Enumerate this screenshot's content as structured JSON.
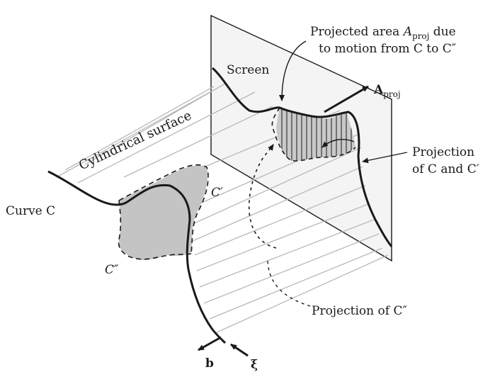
{
  "labels": {
    "screen": "Screen",
    "cylindrical_surface": "Cylindrical surface",
    "curve_c": "Curve C",
    "c_prime": "C′",
    "c_double_prime": "C″",
    "projected_area_line1_pre": "Projected area ",
    "projected_area_symbol": "A",
    "projected_area_subscript": "proj",
    "projected_area_line1_post": " due",
    "projected_area_line2": "to motion from C to C″",
    "a_proj_vector": "A",
    "a_proj_vector_subscript": "proj",
    "projection_c_line1": "Projection",
    "projection_c_line2": "of C and C′",
    "projection_c_double_prime": "Projection of C″",
    "b_vector": "b",
    "xi_vector": "ξ"
  },
  "colors": {
    "line": "#1a1a1a",
    "hatch": "#b8b8b8",
    "shaded_region": "#c4c4c4",
    "screen_fill": "#f4f4f4"
  }
}
